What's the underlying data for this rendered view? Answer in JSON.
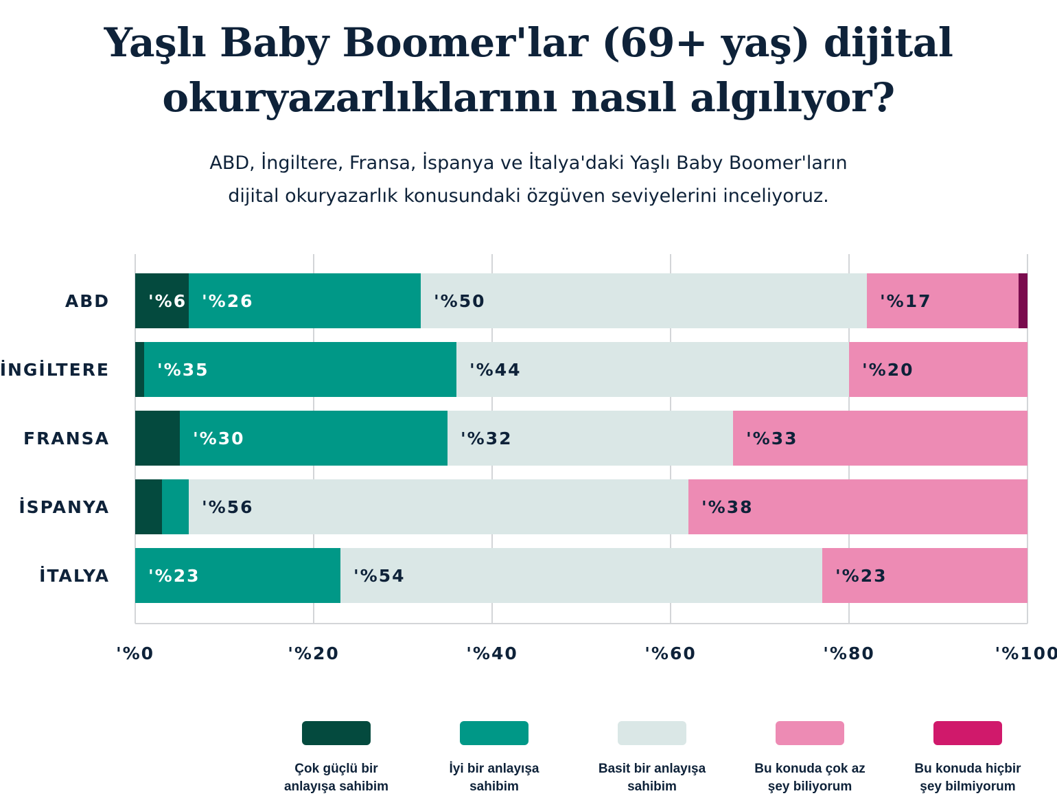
{
  "title_line1": "Yaşlı Baby Boomer'lar (69+ yaş) dijital",
  "title_line2": "okuryazarlıklarını nasıl algılıyor?",
  "subtitle_line1": "ABD, İngiltere, Fransa, İspanya ve İtalya'daki Yaşlı Baby Boomer'ların",
  "subtitle_line2": "dijital okuryazarlık konusundaki özgüven seviyelerini inceliyoruz.",
  "chart_data": {
    "type": "bar",
    "orientation": "horizontal",
    "stacked": true,
    "categories": [
      "ABD",
      "İNGİLTERE",
      "FRANSA",
      "İSPANYA",
      "İTALYA"
    ],
    "xlim": [
      0,
      100
    ],
    "xticks": [
      0,
      20,
      40,
      60,
      80,
      100
    ],
    "xtick_labels": [
      "'%0",
      "'%20",
      "'%40",
      "'%60",
      "'%80",
      "'%100"
    ],
    "grid": true,
    "legend_position": "bottom",
    "series": [
      {
        "name": "Çok güçlü bir anlayışa sahibim",
        "name_lines": [
          "Çok güçlü bir",
          "anlayışa sahibim"
        ],
        "color": "#044a3e",
        "legend_color": "#044a3e",
        "label_color": "#ffffff",
        "values": [
          6,
          1,
          5,
          3,
          0
        ],
        "labels": [
          "'%6",
          "",
          "",
          "",
          ""
        ]
      },
      {
        "name": "İyi bir anlayışa sahibim",
        "name_lines": [
          "İyi bir anlayışa",
          "sahibim"
        ],
        "color": "#009887",
        "legend_color": "#009887",
        "label_color": "#ffffff",
        "values": [
          26,
          35,
          30,
          3,
          23
        ],
        "labels": [
          "'%26",
          "'%35",
          "'%30",
          "",
          "'%23"
        ]
      },
      {
        "name": "Basit bir anlayışa sahibim",
        "name_lines": [
          "Basit bir anlayışa",
          "sahibim"
        ],
        "color": "#dae7e6",
        "legend_color": "#dae7e6",
        "label_color": "#0e2239",
        "values": [
          50,
          44,
          32,
          56,
          54
        ],
        "labels": [
          "'%50",
          "'%44",
          "'%32",
          "'%56",
          "'%54"
        ]
      },
      {
        "name": "Bu konuda çok az şey biliyorum",
        "name_lines": [
          "Bu konuda çok az",
          "şey biliyorum"
        ],
        "color": "#ed8bb4",
        "legend_color": "#ed8bb4",
        "label_color": "#0e2239",
        "values": [
          17,
          20,
          33,
          38,
          23
        ],
        "labels": [
          "'%17",
          "'%20",
          "'%33",
          "'%38",
          "'%23"
        ]
      },
      {
        "name": "Bu konuda hiçbir şey bilmiyorum",
        "name_lines": [
          "Bu konuda hiçbir",
          "şey bilmiyorum"
        ],
        "color": "#7a0c4e",
        "legend_color": "#d0196b",
        "label_color": "#ffffff",
        "values": [
          1,
          0,
          0,
          0,
          0
        ],
        "labels": [
          "",
          "",
          "",
          "",
          ""
        ]
      }
    ]
  }
}
